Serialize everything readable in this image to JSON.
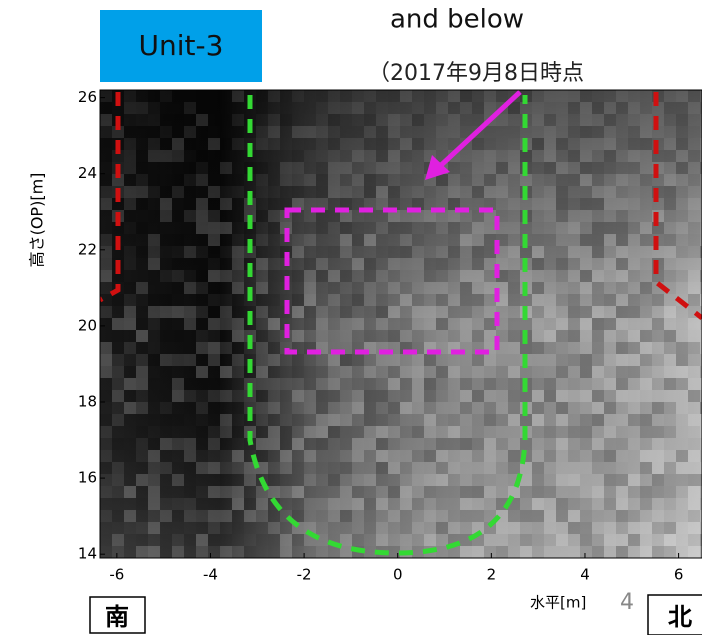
{
  "header": {
    "badge": "Unit-3",
    "line1": "and below",
    "line2": "（2017年9月8日時点"
  },
  "plot": {
    "xlim": [
      -6.36,
      6.5
    ],
    "ylim": [
      13.9,
      26.2
    ],
    "xticks": [
      -6,
      -4,
      -2,
      0,
      2,
      4,
      6
    ],
    "yticks": [
      14,
      16,
      18,
      20,
      22,
      24,
      26
    ],
    "xlabel": "水平[m]",
    "ylabel": "高さ(OP)[m]"
  },
  "footer": {
    "south": "南",
    "north": "北",
    "page": "4"
  }
}
